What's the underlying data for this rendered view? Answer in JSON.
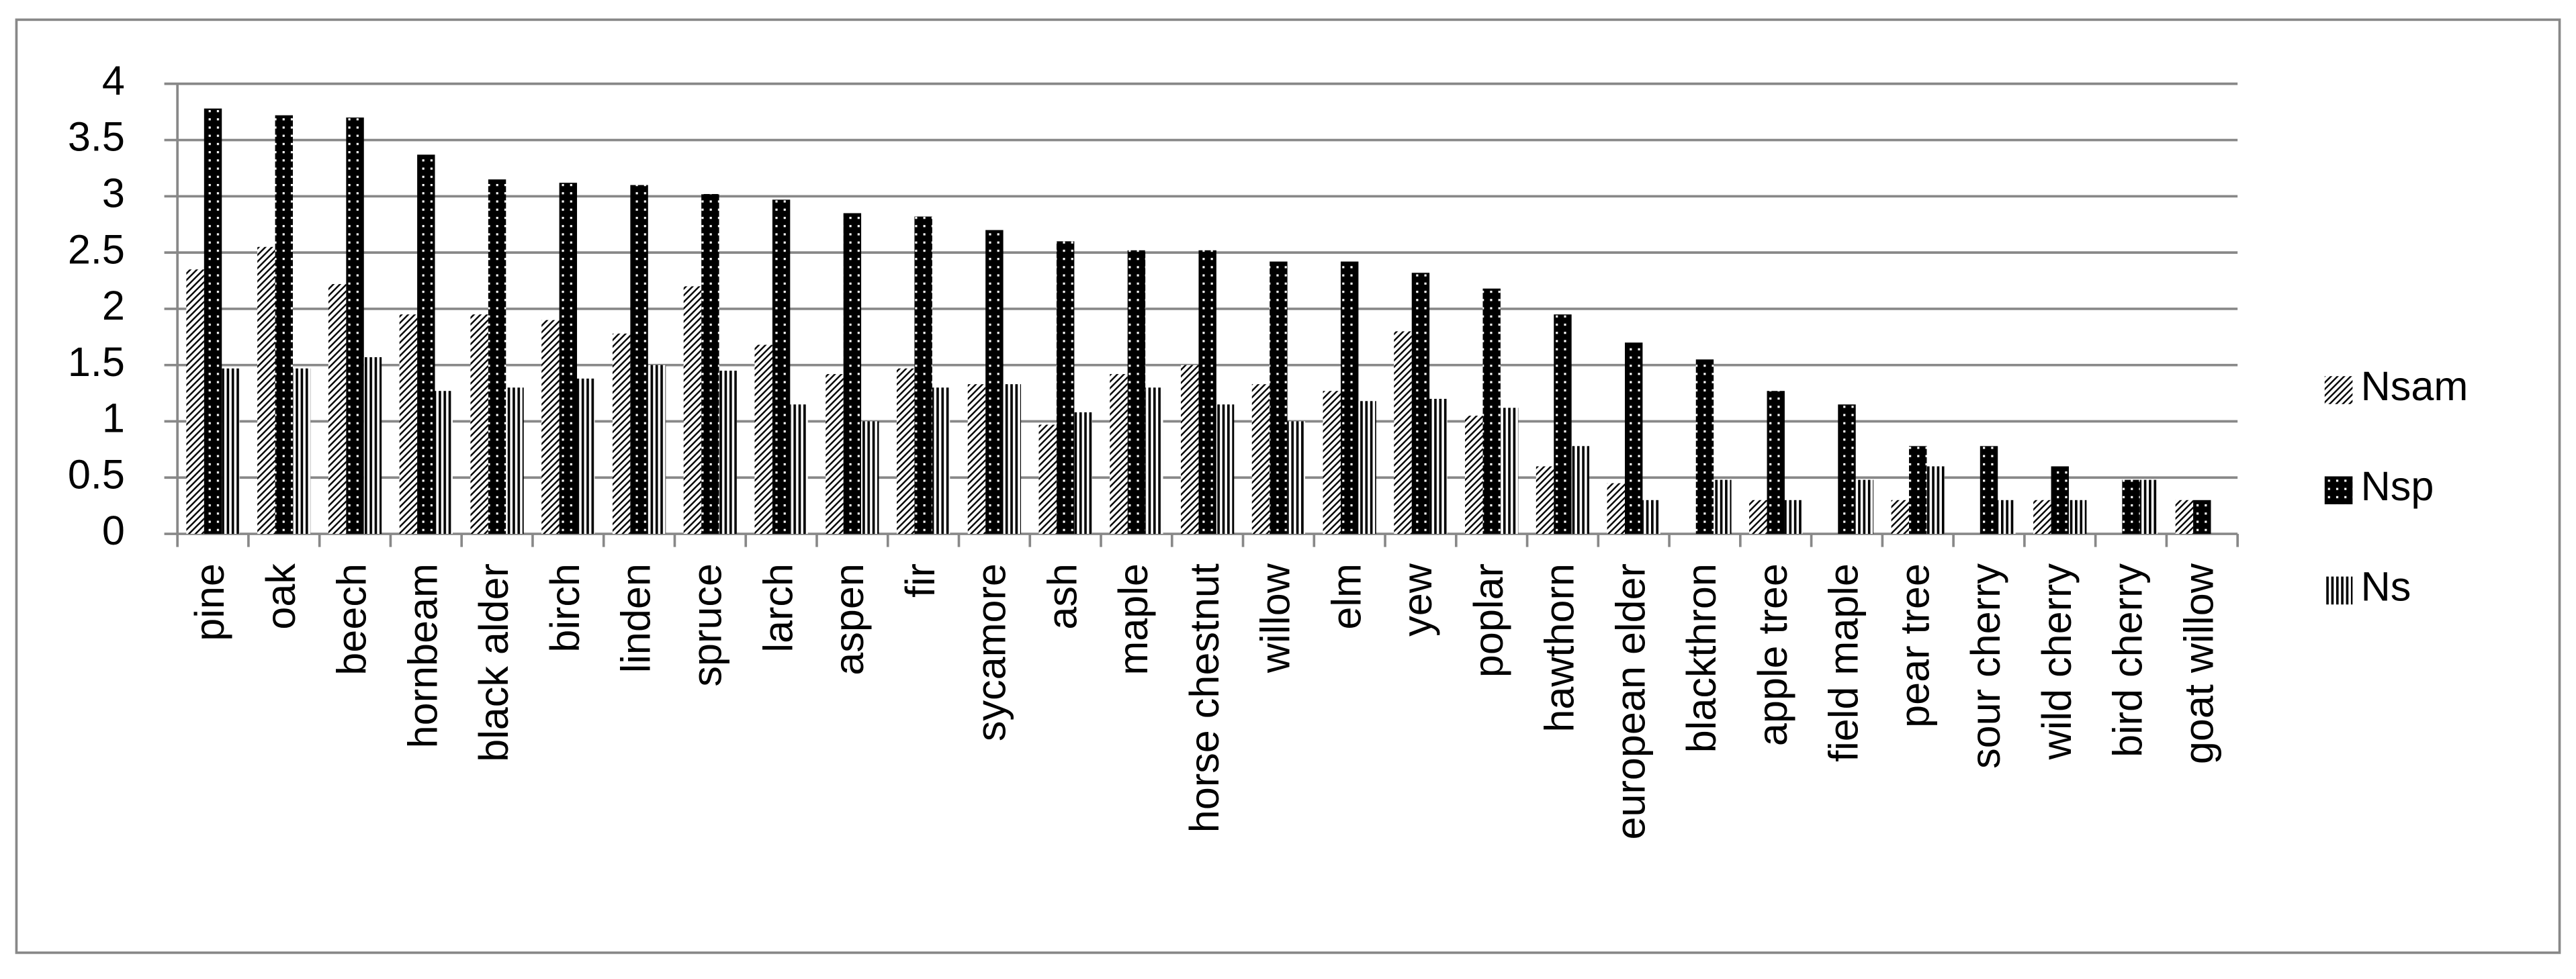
{
  "chart_data": {
    "type": "bar",
    "categories": [
      "pine",
      "oak",
      "beech",
      "hornbeam",
      "black alder",
      "birch",
      "linden",
      "spruce",
      "larch",
      "aspen",
      "fir",
      "sycamore",
      "ash",
      "maple",
      "horse chestnut",
      "willow",
      "elm",
      "yew",
      "poplar",
      "hawthorn",
      "european elder",
      "blackthron",
      "apple tree",
      "field maple",
      "pear tree",
      "sour cherry",
      "wild cherry",
      "bird cherry",
      "goat willow"
    ],
    "series": [
      {
        "name": "Nsam",
        "color": "#000000",
        "values": [
          2.35,
          2.55,
          2.22,
          1.95,
          1.95,
          1.9,
          1.78,
          2.2,
          1.68,
          1.42,
          1.47,
          1.33,
          0.97,
          1.42,
          1.5,
          1.33,
          1.27,
          1.8,
          1.05,
          0.6,
          0.45,
          0,
          0.3,
          0,
          0.3,
          0,
          0.3,
          0,
          0.3
        ]
      },
      {
        "name": "Nsp",
        "color": "#000000",
        "values": [
          3.78,
          3.72,
          3.7,
          3.37,
          3.15,
          3.12,
          3.1,
          3.02,
          2.97,
          2.85,
          2.82,
          2.7,
          2.6,
          2.52,
          2.52,
          2.42,
          2.42,
          2.32,
          2.18,
          1.95,
          1.7,
          1.55,
          1.27,
          1.15,
          0.78,
          0.78,
          0.6,
          0.48,
          0.3
        ]
      },
      {
        "name": "Ns",
        "color": "#000000",
        "values": [
          1.47,
          1.47,
          1.57,
          1.27,
          1.3,
          1.38,
          1.5,
          1.45,
          1.15,
          1.0,
          1.3,
          1.33,
          1.08,
          1.3,
          1.15,
          1.0,
          1.18,
          1.2,
          1.12,
          0.78,
          0.3,
          0.48,
          0.3,
          0.48,
          0.6,
          0.3,
          0.3,
          0.48,
          0
        ]
      }
    ],
    "ylim": [
      0,
      4
    ],
    "yticks": [
      0,
      0.5,
      1,
      1.5,
      2,
      2.5,
      3,
      3.5,
      4
    ],
    "grid": true,
    "legend": "right"
  }
}
